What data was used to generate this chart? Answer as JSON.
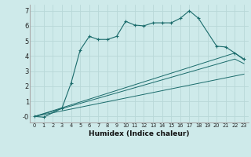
{
  "xlabel": "Humidex (Indice chaleur)",
  "bg_color": "#ceeaea",
  "grid_color": "#b8d8d8",
  "line_color": "#1a6b6b",
  "xlim": [
    -0.5,
    23.5
  ],
  "ylim": [
    -0.4,
    7.4
  ],
  "yticks": [
    0,
    1,
    2,
    3,
    4,
    5,
    6,
    7
  ],
  "ytick_labels": [
    "-0",
    "1",
    "2",
    "3",
    "4",
    "5",
    "6",
    "7"
  ],
  "xticks": [
    0,
    1,
    2,
    3,
    4,
    5,
    6,
    7,
    8,
    9,
    10,
    11,
    12,
    13,
    14,
    15,
    16,
    17,
    18,
    19,
    20,
    21,
    22,
    23
  ],
  "series1_x": [
    0,
    1,
    3,
    4,
    5,
    6,
    7,
    8,
    9,
    10,
    11,
    12,
    13,
    14,
    15,
    16,
    17,
    18,
    20,
    21,
    22,
    23
  ],
  "series1_y": [
    0.0,
    -0.05,
    0.55,
    2.2,
    4.4,
    5.3,
    5.1,
    5.1,
    5.3,
    6.3,
    6.05,
    6.0,
    6.2,
    6.2,
    6.2,
    6.5,
    7.0,
    6.5,
    4.65,
    4.6,
    4.2,
    3.8
  ],
  "series2_x": [
    0,
    23
  ],
  "series2_y": [
    0.0,
    2.8
  ],
  "series3_x": [
    0,
    22,
    23
  ],
  "series3_y": [
    0.0,
    4.2,
    3.75
  ],
  "series4_x": [
    0,
    22,
    23
  ],
  "series4_y": [
    0.0,
    3.8,
    3.5
  ]
}
